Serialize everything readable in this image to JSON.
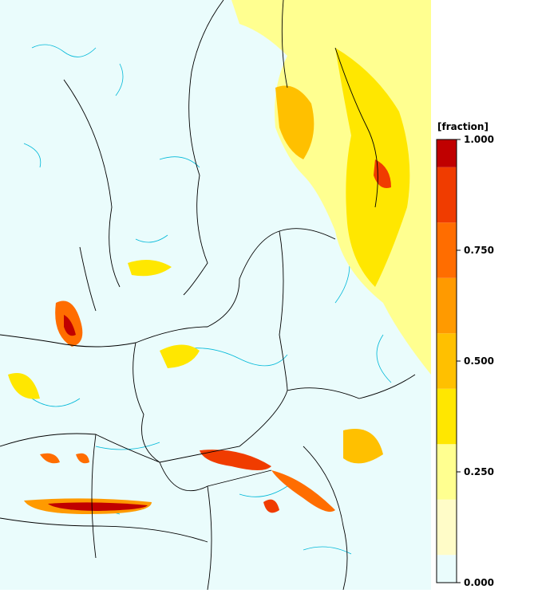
{
  "colorbar": {
    "label": "[fraction]",
    "range": [
      0,
      1
    ],
    "colors": [
      "#eafcfc",
      "#fffcc8",
      "#ffff90",
      "#ffe700",
      "#ffc000",
      "#ff9a00",
      "#ff6d00",
      "#f03c00",
      "#c00000"
    ],
    "ticks": [
      {
        "value": 0,
        "label": "0.000"
      },
      {
        "value": 0.25,
        "label": "0.250"
      },
      {
        "value": 0.5,
        "label": "0.500"
      },
      {
        "value": 0.75,
        "label": "0.750"
      },
      {
        "value": 1,
        "label": "1.000"
      }
    ]
  }
}
